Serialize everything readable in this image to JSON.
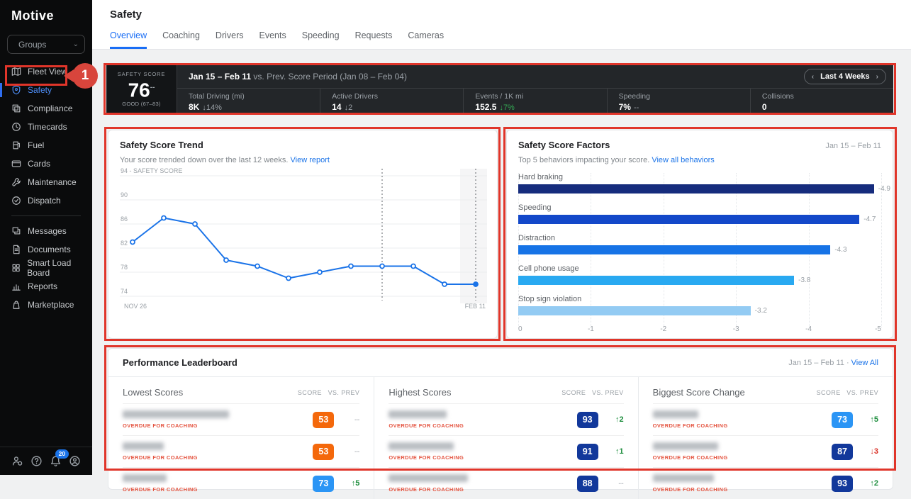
{
  "annotation": {
    "step": "1",
    "color": "#e0352a"
  },
  "sidebar": {
    "logo": "Motive",
    "groups_label": "Groups",
    "items": [
      {
        "label": "Fleet View",
        "icon": "map-icon"
      },
      {
        "label": "Safety",
        "icon": "shield-icon",
        "active": true,
        "annotated": true
      },
      {
        "label": "Compliance",
        "icon": "compliance-icon"
      },
      {
        "label": "Timecards",
        "icon": "clock-icon"
      },
      {
        "label": "Fuel",
        "icon": "fuel-icon"
      },
      {
        "label": "Cards",
        "icon": "card-icon"
      },
      {
        "label": "Maintenance",
        "icon": "wrench-icon"
      },
      {
        "label": "Dispatch",
        "icon": "dispatch-icon"
      },
      {
        "divider": true
      },
      {
        "label": "Messages",
        "icon": "messages-icon"
      },
      {
        "label": "Documents",
        "icon": "document-icon"
      },
      {
        "label": "Smart Load Board",
        "icon": "load-board-icon"
      },
      {
        "label": "Reports",
        "icon": "bar-chart-icon"
      },
      {
        "label": "Marketplace",
        "icon": "bag-icon"
      }
    ],
    "footer": {
      "badge": "20",
      "icons": [
        "admin-user-icon",
        "help-icon",
        "notifications-bell-icon",
        "account-icon"
      ]
    }
  },
  "header": {
    "title": "Safety",
    "tabs": [
      {
        "label": "Overview",
        "active": true
      },
      {
        "label": "Coaching"
      },
      {
        "label": "Drivers"
      },
      {
        "label": "Events"
      },
      {
        "label": "Speeding"
      },
      {
        "label": "Requests"
      },
      {
        "label": "Cameras"
      }
    ]
  },
  "summary": {
    "score_label": "SAFETY SCORE",
    "score": "76",
    "score_delta": "--",
    "score_range": "GOOD (67–83)",
    "period_bold": "Jan 15 – Feb 11",
    "period_rest": " vs. Prev. Score Period (Jan 08 – Feb 04)",
    "range_button_label": "Last 4 Weeks",
    "metrics": [
      {
        "label": "Total Driving (mi)",
        "value": "8K",
        "delta": "↓14%",
        "delta_color": "#9aa0a6"
      },
      {
        "label": "Active Drivers",
        "value": "14",
        "delta": "↓2",
        "delta_color": "#9aa0a6"
      },
      {
        "label": "Events / 1K mi",
        "value": "152.5",
        "delta": "↓7%",
        "delta_color": "#34a853"
      },
      {
        "label": "Speeding",
        "value": "7%",
        "delta": "--",
        "delta_color": "#9aa0a6"
      },
      {
        "label": "Collisions",
        "value": "0",
        "delta": "",
        "delta_color": "#9aa0a6"
      }
    ]
  },
  "trend": {
    "subtitle": "Your score trended down over the last 12 weeks.",
    "link": "View report"
  },
  "factors": {
    "title": "Safety Score Factors",
    "period": "Jan 15 – Feb 11",
    "subtitle": "Top 5 behaviors impacting your score.",
    "link": "View all behaviors"
  },
  "leaderboard": {
    "title": "Performance Leaderboard",
    "period": "Jan 15 – Feb 11",
    "separator": "·",
    "view_all_label": "View All",
    "col_headers": [
      "SCORE",
      "VS. PREV"
    ],
    "columns": [
      {
        "title": "Lowest Scores",
        "rows": [
          {
            "name_redacted": true,
            "name_width": 150,
            "caption": "OVERDUE FOR COACHING",
            "score": "53",
            "score_color": "#f4680b",
            "delta": "--",
            "delta_color": "#c4c7cb"
          },
          {
            "name_redacted": true,
            "name_width": 58,
            "caption": "OVERDUE FOR COACHING",
            "score": "53",
            "score_color": "#f4680b",
            "delta": "--",
            "delta_color": "#c4c7cb"
          },
          {
            "name_redacted": true,
            "name_width": 62,
            "caption": "OVERDUE FOR COACHING",
            "score": "73",
            "score_color": "#2b95f5",
            "delta": "↑5",
            "delta_color": "#1e8e3e"
          }
        ]
      },
      {
        "title": "Highest Scores",
        "rows": [
          {
            "name_redacted": true,
            "name_width": 82,
            "caption": "OVERDUE FOR COACHING",
            "score": "93",
            "score_color": "#12389b",
            "delta": "↑2",
            "delta_color": "#1e8e3e"
          },
          {
            "name_redacted": true,
            "name_width": 92,
            "caption": "OVERDUE FOR COACHING",
            "score": "91",
            "score_color": "#12389b",
            "delta": "↑1",
            "delta_color": "#1e8e3e"
          },
          {
            "name_redacted": true,
            "name_width": 112,
            "caption": "OVERDUE FOR COACHING",
            "score": "88",
            "score_color": "#12389b",
            "delta": "--",
            "delta_color": "#c4c7cb"
          }
        ]
      },
      {
        "title": "Biggest Score Change",
        "rows": [
          {
            "name_redacted": true,
            "name_width": 64,
            "caption": "OVERDUE FOR COACHING",
            "score": "73",
            "score_color": "#2b95f5",
            "delta": "↑5",
            "delta_color": "#1e8e3e"
          },
          {
            "name_redacted": true,
            "name_width": 92,
            "caption": "OVERDUE FOR COACHING",
            "score": "87",
            "score_color": "#12389b",
            "delta": "↓3",
            "delta_color": "#d93025"
          },
          {
            "name_redacted": true,
            "name_width": 86,
            "caption": "OVERDUE FOR COACHING",
            "score": "93",
            "score_color": "#12389b",
            "delta": "↑2",
            "delta_color": "#1e8e3e"
          }
        ]
      }
    ]
  },
  "chart_data": [
    {
      "id": "safety-score-trend",
      "type": "line",
      "title": "Safety Score Trend",
      "x_tick_labels": [
        "NOV 26",
        "FEB 11"
      ],
      "values": [
        83,
        87,
        86,
        80,
        79,
        77,
        78,
        79,
        79,
        79,
        76,
        76
      ],
      "ylim": [
        74,
        94
      ],
      "yticks": [
        74,
        78,
        82,
        86,
        90,
        94
      ],
      "y_axis_label": "SAFETY SCORE",
      "dashed_guides_at_index": [
        8,
        11
      ],
      "highlight_last_period": true,
      "line_color": "#1a73e8",
      "grid": true
    },
    {
      "id": "safety-score-factors",
      "type": "bar",
      "orientation": "horizontal",
      "categories": [
        "Hard braking",
        "Speeding",
        "Distraction",
        "Cell phone usage",
        "Stop sign violation"
      ],
      "values": [
        -4.9,
        -4.7,
        -4.3,
        -3.8,
        -3.2
      ],
      "bar_colors": [
        "#162c7d",
        "#1348c9",
        "#1673e6",
        "#29a9f1",
        "#93cbf3"
      ],
      "xticks": [
        0,
        -1,
        -2,
        -3,
        -4,
        -5
      ],
      "xlim": [
        0,
        -5
      ],
      "grid": "dotted-vertical"
    }
  ]
}
